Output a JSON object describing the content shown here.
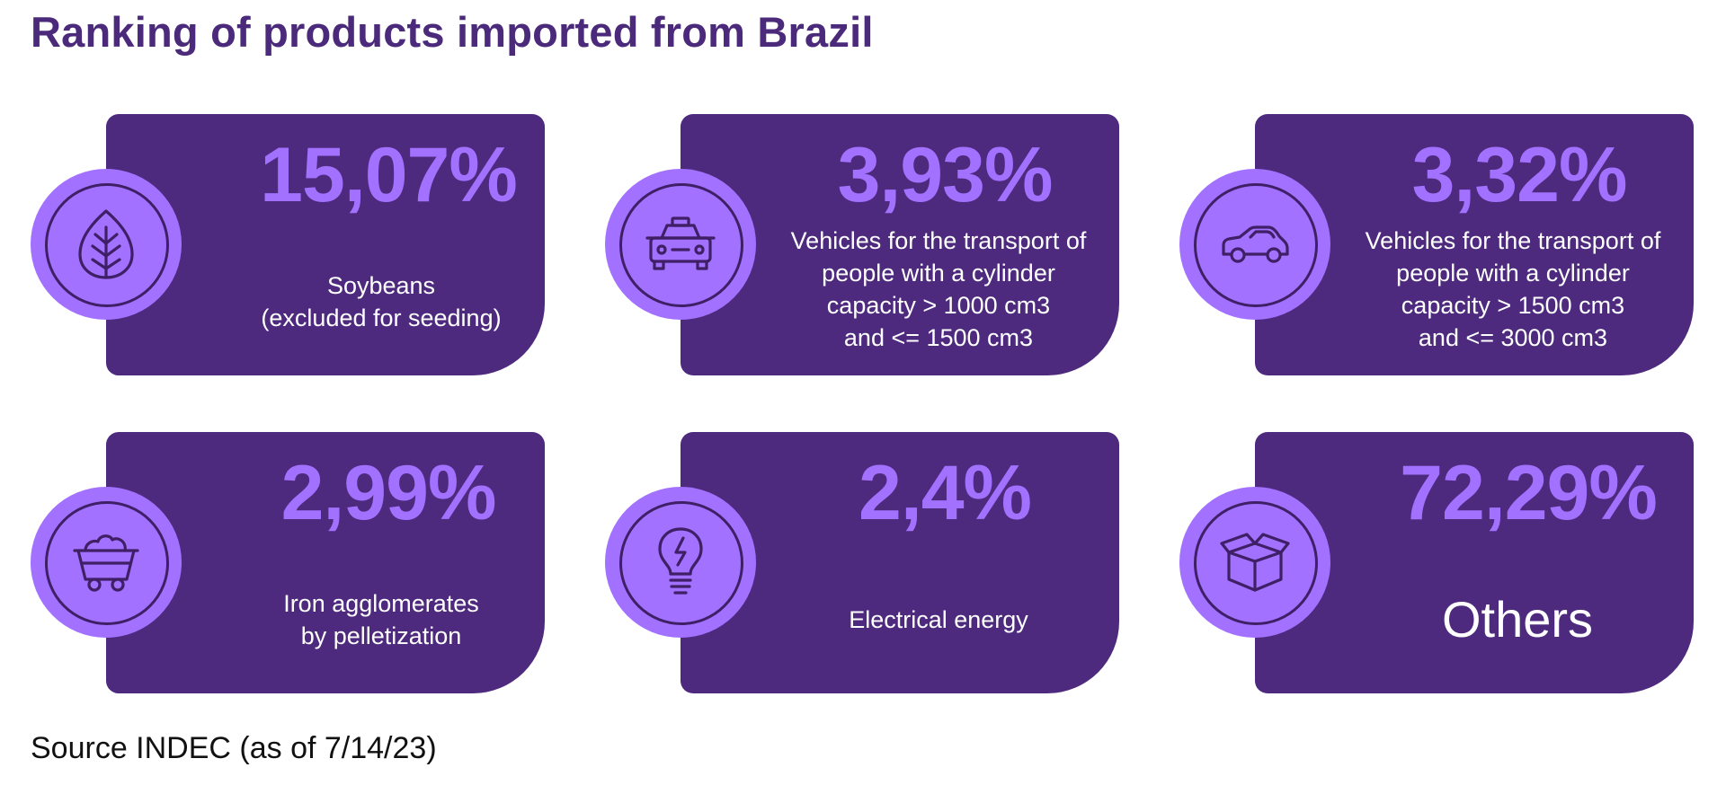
{
  "title": "Ranking of products imported from Brazil",
  "colors": {
    "title": "#4b2a7b",
    "card": "#4e2a7e",
    "accent": "#a371ff",
    "icon_stroke": "#3f1f66"
  },
  "items": [
    {
      "percent": "15,07%",
      "label": "Soybeans\n(excluded for seeding)",
      "icon": "leaf-icon"
    },
    {
      "percent": "3,93%",
      "label": "Vehicles for the transport of\npeople with a cylinder\ncapacity > 1000 cm3\nand <= 1500 cm3",
      "icon": "taxi-icon"
    },
    {
      "percent": "3,32%",
      "label": "Vehicles for the transport of\npeople with a cylinder\ncapacity > 1500 cm3\nand <= 3000 cm3",
      "icon": "car-icon"
    },
    {
      "percent": "2,99%",
      "label": "Iron agglomerates\nby pelletization",
      "icon": "mine-cart-icon"
    },
    {
      "percent": "2,4%",
      "label": "Electrical energy",
      "icon": "lightbulb-icon"
    },
    {
      "percent": "72,29%",
      "label": "Others",
      "icon": "open-box-icon"
    }
  ],
  "source": "Source INDEC (as of 7/14/23)"
}
